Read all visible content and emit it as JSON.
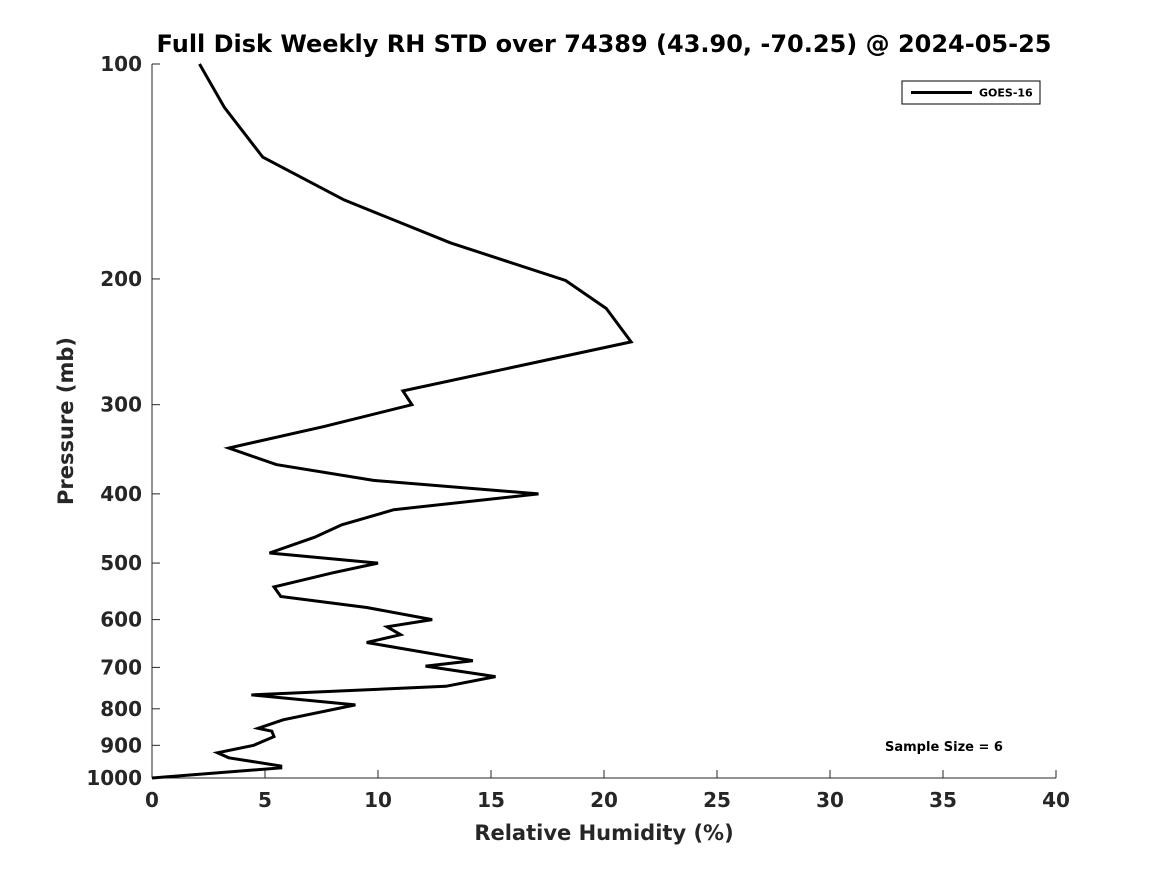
{
  "chart_data": {
    "type": "line",
    "title": "Full Disk Weekly RH STD over 74389 (43.90, -70.25) @ 2024-05-25",
    "xlabel": "Relative Humidity (%)",
    "ylabel": "Pressure (mb)",
    "xlim": [
      0,
      40
    ],
    "ylim": [
      1000,
      100
    ],
    "yscale": "log",
    "y_inverted": true,
    "grid": false,
    "legend_position": "top-right",
    "xticks": [
      0,
      5,
      10,
      15,
      20,
      25,
      30,
      35,
      40
    ],
    "yticks": [
      100,
      200,
      300,
      400,
      500,
      600,
      700,
      800,
      900,
      1000
    ],
    "series": [
      {
        "name": "GOES-16",
        "color": "#000000",
        "x": [
          2.1,
          3.2,
          4.9,
          8.5,
          13.2,
          18.3,
          20.1,
          21.2,
          11.1,
          11.5,
          7.6,
          3.4,
          5.5,
          9.8,
          17.1,
          10.7,
          8.4,
          7.2,
          5.2,
          10.0,
          8.0,
          5.4,
          5.7,
          9.5,
          12.4,
          10.4,
          11.0,
          9.5,
          14.2,
          12.1,
          15.2,
          13.0,
          4.4,
          9.0,
          5.8,
          4.7,
          5.3,
          5.4,
          4.5,
          2.9,
          3.4,
          5.7,
          5.7,
          0.0
        ],
        "y": [
          100,
          115,
          135,
          155,
          178,
          201,
          220,
          245,
          287,
          300,
          322,
          345,
          364,
          383,
          400,
          421,
          442,
          460,
          484,
          500,
          516,
          540,
          557,
          577,
          600,
          614,
          630,
          646,
          685,
          697,
          721,
          744,
          765,
          790,
          829,
          852,
          860,
          875,
          900,
          922,
          937,
          962,
          968,
          1000
        ]
      }
    ],
    "annotations": [
      "Sample Size = 6"
    ]
  }
}
